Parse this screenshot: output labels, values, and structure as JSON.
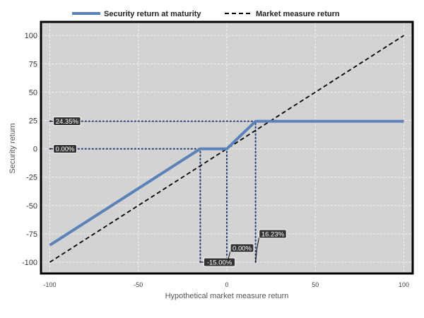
{
  "chart_data": {
    "type": "line",
    "xlabel": "Hypothetical market measure return",
    "ylabel": "Security return",
    "xlim": [
      -105,
      105
    ],
    "ylim": [
      -110,
      112
    ],
    "x_ticks": [
      -100,
      -50,
      0,
      50,
      100
    ],
    "y_ticks": [
      -100,
      -75,
      -50,
      -25,
      0,
      25,
      50,
      75,
      100
    ],
    "grid": true,
    "legend_position": "top",
    "background": "#d3d3d3",
    "series": [
      {
        "name": "Security return at maturity",
        "color": "#5b82b8",
        "style": "solid",
        "x": [
          -100,
          -15,
          0,
          16.23,
          100
        ],
        "y": [
          -85,
          0,
          0,
          24.35,
          24.35
        ]
      },
      {
        "name": "Market measure return",
        "color": "#000000",
        "style": "dashed",
        "x": [
          -100,
          100
        ],
        "y": [
          -100,
          100
        ]
      }
    ],
    "reference_lines": [
      {
        "type": "horizontal",
        "y": 24.35,
        "from_x": -100,
        "to_x": 16.23
      },
      {
        "type": "horizontal",
        "y": 0,
        "from_x": -100,
        "to_x": 0
      },
      {
        "type": "vertical",
        "x": -15,
        "from_y": -100,
        "to_y": 0
      },
      {
        "type": "vertical",
        "x": 0,
        "from_y": -100,
        "to_y": 0
      },
      {
        "type": "vertical",
        "x": 16.23,
        "from_y": -100,
        "to_y": 24.35
      }
    ],
    "annotations": [
      {
        "text": "24.35%",
        "x": -100,
        "y": 24.35,
        "kind": "y-callout"
      },
      {
        "text": "0.00%",
        "x": -100,
        "y": 0,
        "kind": "y-callout"
      },
      {
        "text": "-15.00%",
        "x": -15,
        "y": -100,
        "kind": "x-callout"
      },
      {
        "text": "0.00%",
        "x": 0,
        "y": -100,
        "kind": "x-callout-raised"
      },
      {
        "text": "16.23%",
        "x": 16.23,
        "y": -100,
        "kind": "x-callout-raised-high"
      }
    ]
  }
}
